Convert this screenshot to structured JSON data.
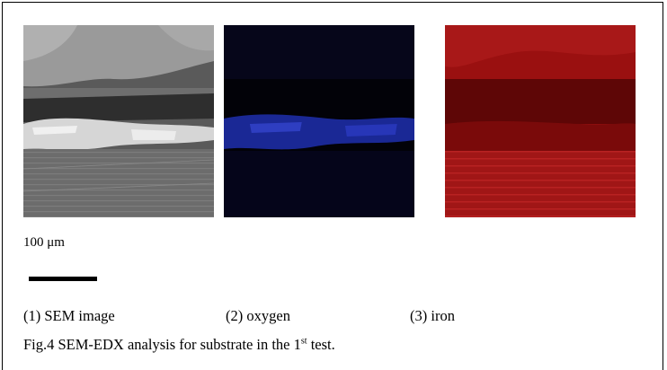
{
  "figure": {
    "scale_label": "100 μm",
    "panels": [
      {
        "caption": "(1) SEM image"
      },
      {
        "caption": "(2) oxygen"
      },
      {
        "caption": "(3) iron"
      }
    ],
    "caption_prefix": "Fig.4 SEM-EDX analysis for substrate in the 1",
    "caption_sup": "st",
    "caption_suffix": " test.",
    "colors": {
      "sem_gray": "#8a8a8a",
      "oxygen_blue": "#1f2fae",
      "iron_red": "#9a1010"
    }
  }
}
